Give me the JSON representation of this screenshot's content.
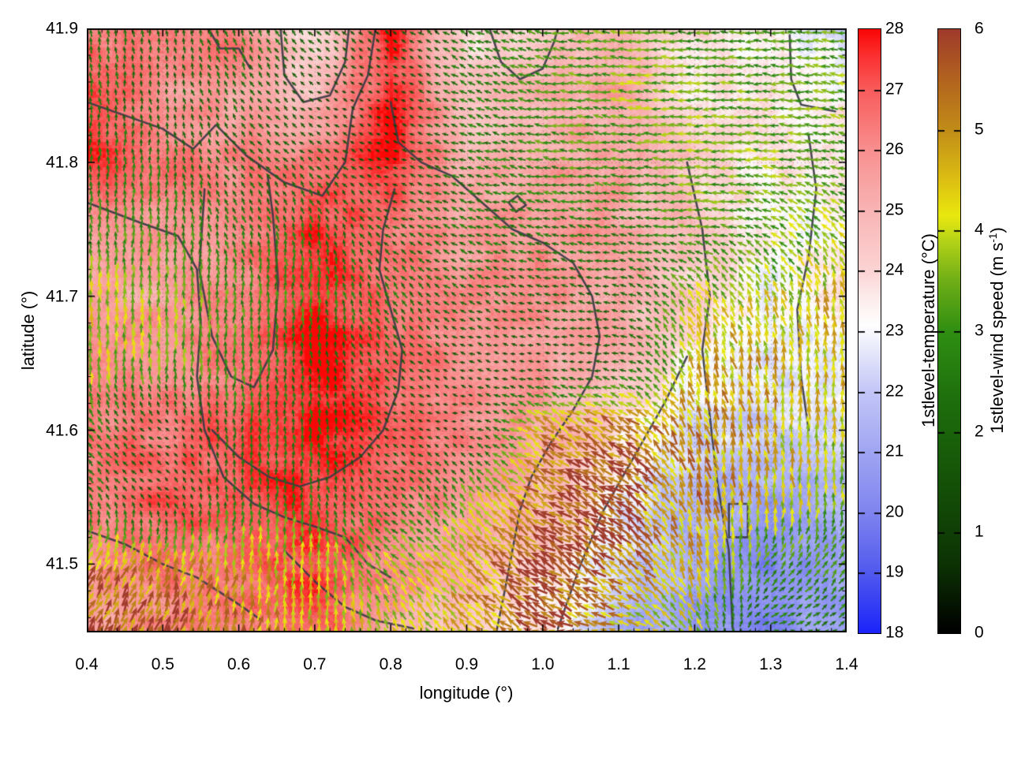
{
  "page": {
    "background": "#ffffff"
  },
  "chart_data": {
    "type": "heatmap",
    "subtype": "geographic temperature field with wind-vector overlay and contour lines",
    "title": "",
    "xlabel": "longitude (°)",
    "ylabel": "latitude (°)",
    "xlim": [
      0.4,
      1.4
    ],
    "ylim": [
      41.449,
      41.9
    ],
    "x_ticks": [
      "0.4",
      "0.5",
      "0.6",
      "0.7",
      "0.8",
      "0.9",
      "1.0",
      "1.1",
      "1.2",
      "1.3",
      "1.4"
    ],
    "x_tick_values": [
      0.4,
      0.5,
      0.6,
      0.7,
      0.8,
      0.9,
      1.0,
      1.1,
      1.2,
      1.3,
      1.4
    ],
    "y_ticks": [
      "41.5",
      "41.6",
      "41.7",
      "41.8",
      "41.9"
    ],
    "y_tick_values": [
      41.5,
      41.6,
      41.7,
      41.8,
      41.9
    ],
    "minor_tick_step_x": 0.02,
    "minor_tick_step_y": 0.02,
    "grid": "dotted graticule at major ticks",
    "contour_color": "#3b3b47",
    "colorbars": [
      {
        "label": "1stlevel-temperature (°C)",
        "range": [
          18,
          28
        ],
        "ticks": [
          "18",
          "19",
          "20",
          "21",
          "22",
          "23",
          "24",
          "25",
          "26",
          "27",
          "28"
        ],
        "tick_values": [
          18,
          19,
          20,
          21,
          22,
          23,
          24,
          25,
          26,
          27,
          28
        ],
        "stops": [
          [
            18,
            "#1b24fa"
          ],
          [
            19,
            "#5159ee"
          ],
          [
            20,
            "#7f84ef"
          ],
          [
            21,
            "#a0a5f2"
          ],
          [
            22,
            "#c3c6f7"
          ],
          [
            22.7,
            "#e8e9fb"
          ],
          [
            23.1,
            "#ffffff"
          ],
          [
            23.6,
            "#fdeaea"
          ],
          [
            24,
            "#fcd4d4"
          ],
          [
            25,
            "#f9b5b5"
          ],
          [
            26,
            "#f89090"
          ],
          [
            27,
            "#f95c5c"
          ],
          [
            27.6,
            "#fb2e2e"
          ],
          [
            28,
            "#fc0606"
          ]
        ]
      },
      {
        "label": "1stlevel-wind speed (m s⁻¹)",
        "label_pre": "1stlevel-wind speed (m s",
        "label_sup": "-1",
        "label_post": ")",
        "range": [
          0,
          6
        ],
        "ticks": [
          "0",
          "1",
          "2",
          "3",
          "4",
          "5",
          "6"
        ],
        "tick_values": [
          0,
          1,
          2,
          3,
          4,
          5,
          6
        ],
        "stops": [
          [
            0,
            "#000000"
          ],
          [
            0.7,
            "#0d3305"
          ],
          [
            1.5,
            "#155208"
          ],
          [
            2.3,
            "#1e6e0d"
          ],
          [
            3.0,
            "#2f8f12"
          ],
          [
            3.5,
            "#6fae17"
          ],
          [
            3.9,
            "#b5d318"
          ],
          [
            4.15,
            "#eae90f"
          ],
          [
            4.5,
            "#ddc013"
          ],
          [
            5.0,
            "#c28d18"
          ],
          [
            5.5,
            "#b2641f"
          ],
          [
            6.0,
            "#a03b2c"
          ]
        ]
      }
    ],
    "grid_lons": [
      0.4,
      0.5,
      0.6,
      0.7,
      0.8,
      0.9,
      1.0,
      1.1,
      1.2,
      1.3,
      1.4
    ],
    "grid_lats": [
      41.9,
      41.85,
      41.8,
      41.75,
      41.7,
      41.65,
      41.6,
      41.55,
      41.5,
      41.45
    ],
    "temperature_c": [
      [
        26.5,
        26.0,
        26.5,
        23.5,
        27.8,
        23.5,
        24.5,
        25.0,
        24.0,
        23.5,
        22.5
      ],
      [
        27.5,
        26.0,
        25.5,
        24.5,
        27.8,
        24.5,
        25.0,
        25.5,
        23.5,
        23.5,
        23.5
      ],
      [
        27.5,
        26.5,
        26.0,
        26.5,
        27.8,
        25.0,
        25.5,
        25.5,
        24.5,
        23.5,
        24.0
      ],
      [
        26.0,
        25.5,
        26.5,
        27.5,
        26.5,
        25.5,
        26.0,
        25.5,
        24.5,
        23.0,
        23.5
      ],
      [
        25.5,
        25.5,
        26.0,
        28.0,
        26.5,
        26.0,
        26.0,
        25.5,
        24.0,
        23.0,
        23.5
      ],
      [
        26.0,
        26.0,
        26.5,
        28.0,
        27.0,
        26.0,
        25.5,
        25.0,
        23.5,
        22.5,
        23.0
      ],
      [
        26.5,
        26.5,
        27.0,
        28.0,
        27.0,
        26.0,
        25.5,
        24.0,
        22.5,
        22.0,
        22.5
      ],
      [
        26.5,
        27.0,
        27.0,
        27.5,
        26.5,
        26.0,
        25.0,
        23.0,
        21.5,
        21.0,
        21.5
      ],
      [
        26.0,
        26.5,
        26.5,
        27.5,
        26.0,
        25.5,
        24.0,
        22.5,
        21.0,
        20.0,
        21.0
      ],
      [
        25.5,
        26.0,
        26.5,
        27.0,
        25.5,
        24.5,
        23.5,
        21.5,
        20.5,
        20.3,
        21.0
      ]
    ],
    "wind_speed_ms": [
      [
        2.5,
        2.0,
        2.5,
        2.2,
        1.5,
        2.5,
        3.0,
        3.5,
        3.0,
        3.0,
        3.2
      ],
      [
        2.5,
        1.8,
        2.2,
        1.2,
        1.0,
        2.5,
        3.0,
        3.5,
        3.5,
        3.2,
        3.5
      ],
      [
        2.5,
        2.5,
        2.0,
        2.0,
        1.2,
        2.5,
        3.0,
        3.0,
        3.5,
        3.5,
        3.0
      ],
      [
        3.0,
        3.0,
        2.5,
        2.5,
        2.0,
        2.5,
        2.5,
        2.5,
        3.0,
        3.5,
        4.0
      ],
      [
        4.0,
        3.5,
        3.0,
        3.0,
        2.5,
        2.0,
        2.0,
        2.0,
        4.0,
        4.0,
        4.5
      ],
      [
        4.0,
        3.5,
        3.0,
        2.0,
        2.0,
        1.5,
        1.2,
        2.0,
        4.5,
        4.5,
        4.5
      ],
      [
        2.8,
        1.2,
        2.5,
        2.5,
        1.5,
        1.0,
        5.0,
        5.5,
        5.0,
        4.5,
        4.0
      ],
      [
        2.5,
        1.5,
        2.5,
        2.5,
        2.0,
        3.5,
        5.5,
        6.0,
        5.0,
        4.5,
        3.5
      ],
      [
        5.0,
        5.0,
        4.5,
        4.2,
        3.8,
        4.5,
        6.0,
        5.5,
        4.5,
        3.0,
        3.0
      ],
      [
        5.5,
        5.5,
        5.0,
        4.5,
        4.0,
        4.5,
        5.5,
        4.5,
        4.0,
        2.5,
        2.5
      ]
    ],
    "wind_dir_deg_ccw_from_east": [
      [
        100,
        95,
        110,
        135,
        140,
        150,
        170,
        175,
        180,
        175,
        175
      ],
      [
        95,
        100,
        120,
        150,
        150,
        155,
        170,
        175,
        180,
        178,
        170
      ],
      [
        90,
        90,
        130,
        140,
        160,
        160,
        170,
        175,
        180,
        175,
        165
      ],
      [
        90,
        90,
        110,
        100,
        150,
        160,
        165,
        170,
        180,
        150,
        130
      ],
      [
        90,
        90,
        90,
        90,
        120,
        150,
        160,
        170,
        120,
        110,
        100
      ],
      [
        90,
        90,
        90,
        95,
        130,
        160,
        175,
        175,
        110,
        100,
        95
      ],
      [
        130,
        150,
        90,
        90,
        150,
        170,
        150,
        150,
        110,
        100,
        90
      ],
      [
        120,
        140,
        90,
        95,
        140,
        120,
        150,
        150,
        105,
        95,
        85
      ],
      [
        65,
        72,
        82,
        90,
        135,
        135,
        150,
        145,
        110,
        55,
        55
      ],
      [
        60,
        68,
        78,
        88,
        110,
        135,
        150,
        170,
        120,
        20,
        40
      ]
    ],
    "contour_lines_lonlat": [
      [
        [
          0.4,
          41.845
        ],
        [
          0.5,
          41.825
        ],
        [
          0.54,
          41.81
        ],
        [
          0.57,
          41.828
        ],
        [
          0.61,
          41.805
        ],
        [
          0.66,
          41.785
        ],
        [
          0.71,
          41.775
        ],
        [
          0.74,
          41.8
        ],
        [
          0.75,
          41.84
        ],
        [
          0.77,
          41.865
        ],
        [
          0.78,
          41.9
        ]
      ],
      [
        [
          0.655,
          41.9
        ],
        [
          0.66,
          41.865
        ],
        [
          0.685,
          41.845
        ],
        [
          0.72,
          41.85
        ],
        [
          0.74,
          41.875
        ],
        [
          0.745,
          41.9
        ]
      ],
      [
        [
          0.56,
          41.9
        ],
        [
          0.575,
          41.885
        ],
        [
          0.6,
          41.885
        ],
        [
          0.615,
          41.87
        ]
      ],
      [
        [
          0.93,
          41.9
        ],
        [
          0.945,
          41.875
        ],
        [
          0.97,
          41.862
        ],
        [
          1.0,
          41.87
        ],
        [
          1.015,
          41.89
        ],
        [
          1.02,
          41.9
        ]
      ],
      [
        [
          0.4,
          41.77
        ],
        [
          0.47,
          41.755
        ],
        [
          0.52,
          41.745
        ],
        [
          0.545,
          41.72
        ],
        [
          0.55,
          41.68
        ],
        [
          0.545,
          41.64
        ],
        [
          0.555,
          41.6
        ],
        [
          0.58,
          41.565
        ],
        [
          0.62,
          41.545
        ],
        [
          0.66,
          41.535
        ],
        [
          0.7,
          41.528
        ],
        [
          0.74,
          41.52
        ],
        [
          0.77,
          41.5
        ],
        [
          0.8,
          41.49
        ]
      ],
      [
        [
          0.8,
          41.845
        ],
        [
          0.81,
          41.815
        ],
        [
          0.84,
          41.8
        ],
        [
          0.88,
          41.79
        ],
        [
          0.92,
          41.77
        ],
        [
          0.96,
          41.75
        ],
        [
          1.0,
          41.74
        ],
        [
          1.04,
          41.725
        ],
        [
          1.065,
          41.7
        ],
        [
          1.075,
          41.67
        ],
        [
          1.065,
          41.64
        ],
        [
          1.04,
          41.615
        ],
        [
          1.01,
          41.59
        ],
        [
          0.985,
          41.565
        ],
        [
          0.97,
          41.54
        ],
        [
          0.96,
          41.51
        ],
        [
          0.95,
          41.48
        ],
        [
          0.94,
          41.452
        ]
      ],
      [
        [
          0.805,
          41.78
        ],
        [
          0.79,
          41.75
        ],
        [
          0.785,
          41.72
        ],
        [
          0.8,
          41.69
        ],
        [
          0.815,
          41.66
        ],
        [
          0.81,
          41.63
        ],
        [
          0.79,
          41.6
        ],
        [
          0.76,
          41.58
        ],
        [
          0.72,
          41.565
        ],
        [
          0.68,
          41.558
        ],
        [
          0.64,
          41.565
        ],
        [
          0.6,
          41.58
        ],
        [
          0.565,
          41.6
        ]
      ],
      [
        [
          0.555,
          41.78
        ],
        [
          0.548,
          41.72
        ],
        [
          0.565,
          41.67
        ],
        [
          0.59,
          41.64
        ],
        [
          0.62,
          41.632
        ],
        [
          0.645,
          41.66
        ],
        [
          0.652,
          41.71
        ],
        [
          0.645,
          41.76
        ],
        [
          0.638,
          41.79
        ]
      ],
      [
        [
          1.19,
          41.8
        ],
        [
          1.21,
          41.75
        ],
        [
          1.22,
          41.7
        ],
        [
          1.21,
          41.66
        ],
        [
          1.22,
          41.61
        ],
        [
          1.23,
          41.56
        ],
        [
          1.245,
          41.51
        ],
        [
          1.25,
          41.452
        ]
      ],
      [
        [
          1.02,
          41.452
        ],
        [
          1.05,
          41.5
        ],
        [
          1.08,
          41.54
        ],
        [
          1.12,
          41.58
        ],
        [
          1.16,
          41.62
        ],
        [
          1.19,
          41.655
        ]
      ],
      [
        [
          0.4,
          41.525
        ],
        [
          0.45,
          41.515
        ],
        [
          0.5,
          41.5
        ],
        [
          0.545,
          41.49
        ],
        [
          0.6,
          41.47
        ],
        [
          0.63,
          41.458
        ]
      ],
      [
        [
          0.66,
          41.51
        ],
        [
          0.7,
          41.487
        ],
        [
          0.74,
          41.468
        ],
        [
          0.78,
          41.458
        ],
        [
          0.83,
          41.452
        ]
      ],
      [
        [
          1.325,
          41.895
        ],
        [
          1.327,
          41.862
        ],
        [
          1.34,
          41.843
        ],
        [
          1.385,
          41.838
        ]
      ],
      [
        [
          1.35,
          41.82
        ],
        [
          1.36,
          41.78
        ],
        [
          1.35,
          41.73
        ],
        [
          1.335,
          41.69
        ],
        [
          1.34,
          41.64
        ],
        [
          1.35,
          41.6
        ]
      ],
      [
        [
          1.245,
          41.545
        ],
        [
          1.245,
          41.52
        ],
        [
          1.27,
          41.52
        ],
        [
          1.27,
          41.545
        ],
        [
          1.245,
          41.545
        ]
      ],
      [
        [
          0.955,
          41.77
        ],
        [
          0.965,
          41.763
        ],
        [
          0.978,
          41.768
        ],
        [
          0.967,
          41.775
        ],
        [
          0.955,
          41.77
        ]
      ]
    ]
  }
}
